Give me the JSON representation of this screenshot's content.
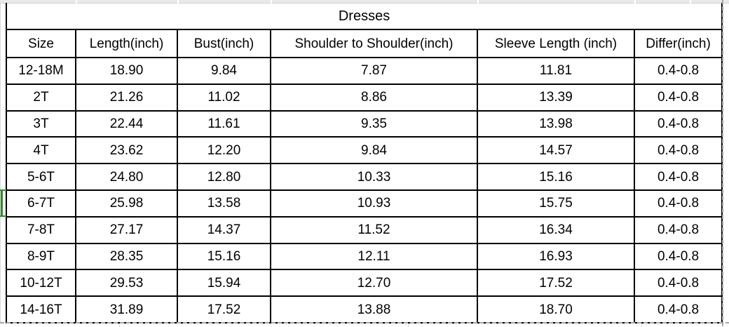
{
  "sheet": {
    "title": "Dresses",
    "columns": [
      "Size",
      "Length(inch)",
      "Bust(inch)",
      "Shoulder to Shoulder(inch)",
      "Sleeve Length (inch)",
      "Differ(inch)"
    ],
    "rows": [
      [
        "12-18M",
        "18.90",
        "9.84",
        "7.87",
        "11.81",
        "0.4-0.8"
      ],
      [
        "2T",
        "21.26",
        "11.02",
        "8.86",
        "13.39",
        "0.4-0.8"
      ],
      [
        "3T",
        "22.44",
        "11.61",
        "9.35",
        "13.98",
        "0.4-0.8"
      ],
      [
        "4T",
        "23.62",
        "12.20",
        "9.84",
        "14.57",
        "0.4-0.8"
      ],
      [
        "5-6T",
        "24.80",
        "12.80",
        "10.33",
        "15.16",
        "0.4-0.8"
      ],
      [
        "6-7T",
        "25.98",
        "13.58",
        "10.93",
        "15.75",
        "0.4-0.8"
      ],
      [
        "7-8T",
        "27.17",
        "14.37",
        "11.52",
        "16.34",
        "0.4-0.8"
      ],
      [
        "8-9T",
        "28.35",
        "15.16",
        "12.11",
        "16.93",
        "0.4-0.8"
      ],
      [
        "10-12T",
        "29.53",
        "15.94",
        "12.70",
        "17.52",
        "0.4-0.8"
      ],
      [
        "14-16T",
        "31.89",
        "17.52",
        "13.88",
        "18.70",
        "0.4-0.8"
      ]
    ],
    "selected_row_label": "6-7T",
    "colors": {
      "table_border": "#000000",
      "text": "#000000",
      "sheet_gridline": "#d9d9d9",
      "top_band_fill": "#e9e9e9",
      "page_break_dash": "#a6a6a6",
      "selection_green": "#378637"
    }
  }
}
